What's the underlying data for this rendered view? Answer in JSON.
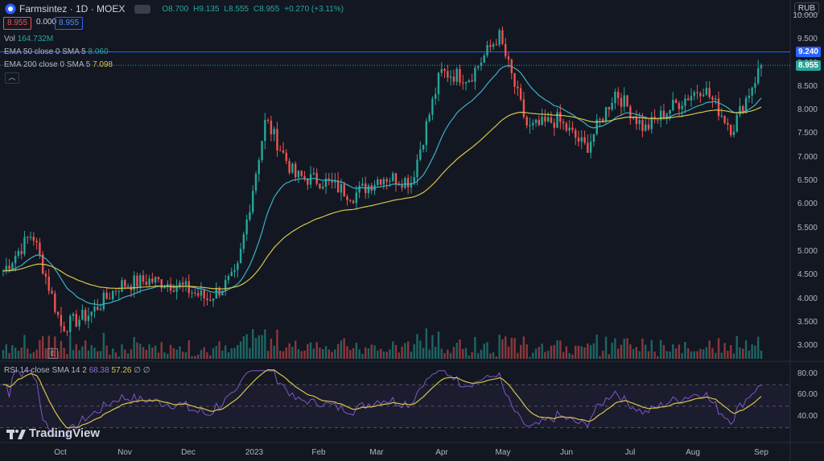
{
  "header": {
    "symbol": "Farmsintez · 1D · MOEX",
    "open": "O8.700",
    "high": "H9.135",
    "low": "L8.555",
    "close": "C8.955",
    "change": "+0.270 (+3.11%)",
    "bid": "8.955",
    "spread": "0.000",
    "ask": "8.955"
  },
  "indicators": {
    "vol_label": "Vol",
    "vol_value": "164.732M",
    "ema50_label": "EMA 50 close 0 SMA 5",
    "ema50_value": "8.060",
    "ema200_label": "EMA 200 close 0 SMA 5",
    "ema200_value": "7.098",
    "rsi_label": "RSI 14 close SMA 14 2",
    "rsi_value": "68.38",
    "rsi_sma_value": "57.26",
    "rsi_extra1": "∅",
    "rsi_extra2": "∅"
  },
  "currency": "RUB",
  "logo_text": "TradingView",
  "colors": {
    "up": "#26a69a",
    "down": "#ef5350",
    "ema50": "#3ab0c4",
    "ema200": "#d8c44a",
    "rsi": "#7e57c2",
    "hline": "#2962ff"
  },
  "chart_data": {
    "type": "candlestick",
    "x_labels": [
      "Oct",
      "Nov",
      "Dec",
      "2023",
      "Feb",
      "Mar",
      "Apr",
      "May",
      "Jun",
      "Jul",
      "Aug",
      "Sep"
    ],
    "price_axis": {
      "ticks": [
        "10.000",
        "9.500",
        "9.000",
        "8.500",
        "8.000",
        "7.500",
        "7.000",
        "6.500",
        "6.000",
        "5.500",
        "5.000",
        "4.500",
        "4.000",
        "3.500",
        "3.000"
      ],
      "ylim": [
        2.7,
        10.1
      ]
    },
    "price_tags": [
      {
        "label": "9.240",
        "value": 9.24,
        "color": "#2962ff"
      },
      {
        "label": "8.955",
        "value": 8.955,
        "color": "#26a69a"
      }
    ],
    "horizontal_line": 9.24,
    "rsi_axis": {
      "ticks": [
        "80.00",
        "60.00",
        "40.00"
      ],
      "ylim": [
        20,
        85
      ],
      "bands": [
        70,
        50,
        30
      ]
    },
    "price_keypoints": [
      [
        "Sep-end",
        4.6
      ],
      [
        "Sep-peak",
        5.4
      ],
      [
        "Oct-low",
        3.4
      ],
      [
        "Oct",
        3.7
      ],
      [
        "Nov",
        4.3
      ],
      [
        "Nov-mid",
        4.4
      ],
      [
        "Dec",
        4.3
      ],
      [
        "Dec-end",
        4.0
      ],
      [
        "2023-pre",
        4.5
      ],
      [
        "2023",
        7.8
      ],
      [
        "Jan-mid",
        6.6
      ],
      [
        "Feb",
        6.5
      ],
      [
        "Feb-end",
        6.2
      ],
      [
        "Mar",
        6.6
      ],
      [
        "Mar-end",
        6.5
      ],
      [
        "Apr",
        8.8
      ],
      [
        "Apr-mid",
        8.7
      ],
      [
        "Apr-end",
        9.6
      ],
      [
        "May",
        7.6
      ],
      [
        "May-mid",
        7.8
      ],
      [
        "Jun",
        7.2
      ],
      [
        "Jun-mid",
        8.4
      ],
      [
        "Jul",
        7.6
      ],
      [
        "Aug",
        8.1
      ],
      [
        "Aug-mid",
        8.5
      ],
      [
        "Aug-end",
        7.6
      ],
      [
        "Sep",
        8.955
      ]
    ]
  }
}
